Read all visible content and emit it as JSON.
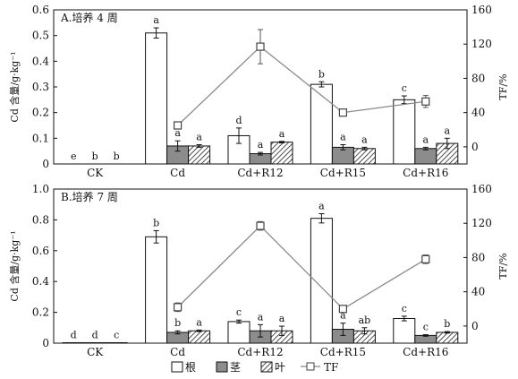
{
  "legend": {
    "root": "根",
    "stem": "茎",
    "leaf": "叶",
    "tf": "TF"
  },
  "chart_data": [
    {
      "type": "bar",
      "title": "A.培养 4 周",
      "ylabel": "Cd 含量/g·kg⁻¹",
      "y2label": "TF/%",
      "ylim": [
        0,
        0.6
      ],
      "yticks": [
        "0",
        "0.1",
        "0.2",
        "0.3",
        "0.4",
        "0.5",
        "0.6"
      ],
      "y2lim": [
        -20,
        160
      ],
      "y2ticks": [
        "0",
        "40",
        "80",
        "120",
        "160"
      ],
      "categories": [
        "CK",
        "Cd",
        "Cd+R12",
        "Cd+R15",
        "Cd+R16"
      ],
      "series": [
        {
          "name": "根",
          "values": [
            0,
            0.51,
            0.11,
            0.31,
            0.25
          ],
          "errors": [
            0,
            0.02,
            0.03,
            0.01,
            0.015
          ],
          "letters": [
            "e",
            "a",
            "d",
            "b",
            "c"
          ]
        },
        {
          "name": "茎",
          "values": [
            0,
            0.07,
            0.04,
            0.065,
            0.06
          ],
          "errors": [
            0,
            0.02,
            0.005,
            0.01,
            0.005
          ],
          "letters": [
            "b",
            "a",
            "a",
            "a",
            "a"
          ]
        },
        {
          "name": "叶",
          "values": [
            0,
            0.07,
            0.085,
            0.06,
            0.08
          ],
          "errors": [
            0,
            0.005,
            0.003,
            0.005,
            0.02
          ],
          "letters": [
            "b",
            "a",
            "a",
            "a",
            "a"
          ]
        }
      ],
      "tf": {
        "name": "TF",
        "values": [
          null,
          25,
          117,
          40,
          53
        ],
        "errors": [
          null,
          3,
          20,
          3,
          7
        ]
      }
    },
    {
      "type": "bar",
      "title": "B.培养 7 周",
      "ylabel": "Cd 含量/g·kg⁻¹",
      "y2label": "TF/%",
      "ylim": [
        0,
        1.0
      ],
      "yticks": [
        "0",
        "0.2",
        "0.4",
        "0.6",
        "0.8",
        "1.0"
      ],
      "y2lim": [
        -20,
        160
      ],
      "y2ticks": [
        "0",
        "40",
        "80",
        "120",
        "160"
      ],
      "categories": [
        "CK",
        "Cd",
        "Cd+R12",
        "Cd+R15",
        "Cd+R16"
      ],
      "series": [
        {
          "name": "根",
          "values": [
            0.003,
            0.69,
            0.14,
            0.81,
            0.16
          ],
          "errors": [
            0,
            0.04,
            0.01,
            0.03,
            0.015
          ],
          "letters": [
            "d",
            "b",
            "c",
            "a",
            "c"
          ]
        },
        {
          "name": "茎",
          "values": [
            0.003,
            0.07,
            0.08,
            0.09,
            0.05
          ],
          "errors": [
            0,
            0.01,
            0.04,
            0.04,
            0.005
          ],
          "letters": [
            "d",
            "b",
            "a",
            "a",
            "c"
          ]
        },
        {
          "name": "叶",
          "values": [
            0.003,
            0.08,
            0.08,
            0.08,
            0.07
          ],
          "errors": [
            0,
            0.005,
            0.03,
            0.02,
            0.005
          ],
          "letters": [
            "c",
            "a",
            "a",
            "ab",
            "b"
          ]
        }
      ],
      "tf": {
        "name": "TF",
        "values": [
          null,
          22,
          117,
          20,
          78
        ],
        "errors": [
          null,
          5,
          5,
          3,
          5
        ]
      }
    }
  ]
}
